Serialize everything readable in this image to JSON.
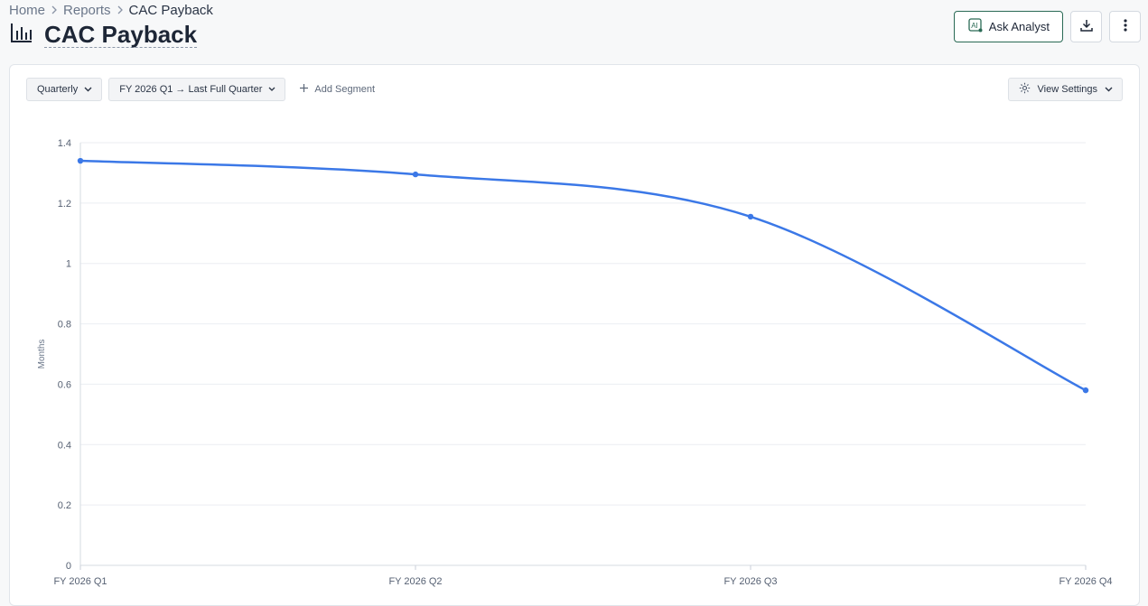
{
  "breadcrumb": {
    "items": [
      "Home",
      "Reports"
    ],
    "current": "CAC Payback"
  },
  "page": {
    "title": "CAC Payback",
    "title_icon": "bar-chart-icon"
  },
  "actions": {
    "ask_analyst_label": "Ask Analyst",
    "ask_analyst_icon": "ai-icon",
    "download_icon": "download-icon",
    "more_icon": "more-vertical-icon"
  },
  "toolbar": {
    "granularity": "Quarterly",
    "date_range": "FY 2026 Q1 → Last Full Quarter",
    "add_segment_label": "Add Segment",
    "view_settings_label": "View Settings"
  },
  "colors": {
    "line": "#3b78e7",
    "accent_button_border": "#2a6a55",
    "grid": "#ebeef2"
  },
  "chart_data": {
    "type": "line",
    "categories": [
      "FY 2026 Q1",
      "FY 2026 Q2",
      "FY 2026 Q3",
      "FY 2026 Q4"
    ],
    "series": [
      {
        "values": [
          1.34,
          1.295,
          1.155,
          0.58
        ]
      }
    ],
    "title": "",
    "xlabel": "",
    "ylabel": "Months",
    "ylim": [
      0,
      1.4
    ],
    "yticks": [
      "0",
      "0.2",
      "0.4",
      "0.6",
      "0.8",
      "1",
      "1.2",
      "1.4"
    ],
    "grid": true,
    "smooth": true
  }
}
